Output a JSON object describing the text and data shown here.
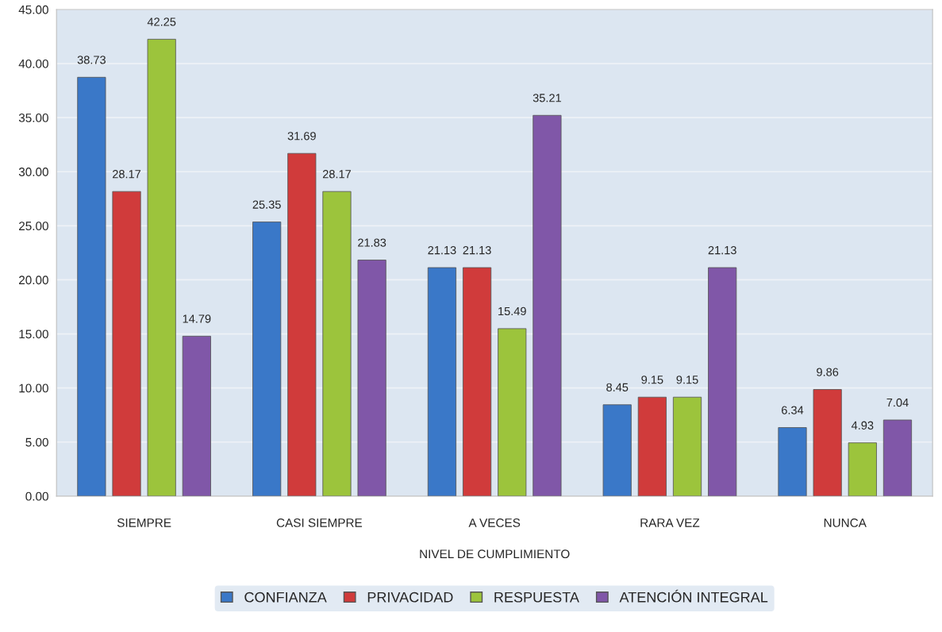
{
  "chart_data": {
    "type": "bar",
    "xlabel": "NIVEL DE CUMPLIMIENTO",
    "categories": [
      "SIEMPRE",
      "CASI SIEMPRE",
      "A VECES",
      "RARA VEZ",
      "NUNCA"
    ],
    "series": [
      {
        "name": "CONFIANZA",
        "color": "#3a78c8",
        "values": [
          38.73,
          25.35,
          21.13,
          8.45,
          6.34
        ]
      },
      {
        "name": "PRIVACIDAD",
        "color": "#d03b3b",
        "values": [
          28.17,
          31.69,
          21.13,
          9.15,
          9.86
        ]
      },
      {
        "name": "RESPUESTA",
        "color": "#9cc43c",
        "values": [
          42.25,
          28.17,
          15.49,
          9.15,
          4.93
        ]
      },
      {
        "name": "ATENCIÓN INTEGRAL",
        "color": "#8057a8",
        "values": [
          14.79,
          21.83,
          35.21,
          21.13,
          7.04
        ]
      }
    ],
    "ylim": [
      0,
      45
    ],
    "yticks": [
      {
        "value": 0,
        "label": "0.00"
      },
      {
        "value": 5,
        "label": "5.00"
      },
      {
        "value": 10,
        "label": "10.00"
      },
      {
        "value": 15,
        "label": "15.00"
      },
      {
        "value": 20,
        "label": "20.00"
      },
      {
        "value": 25,
        "label": "25.00"
      },
      {
        "value": 30,
        "label": "30.00"
      },
      {
        "value": 35,
        "label": "35.00"
      },
      {
        "value": 40,
        "label": "40.00"
      },
      {
        "value": 45,
        "label": "45.00"
      }
    ],
    "grid": "y",
    "legend": "bottom",
    "data_labels": true
  }
}
